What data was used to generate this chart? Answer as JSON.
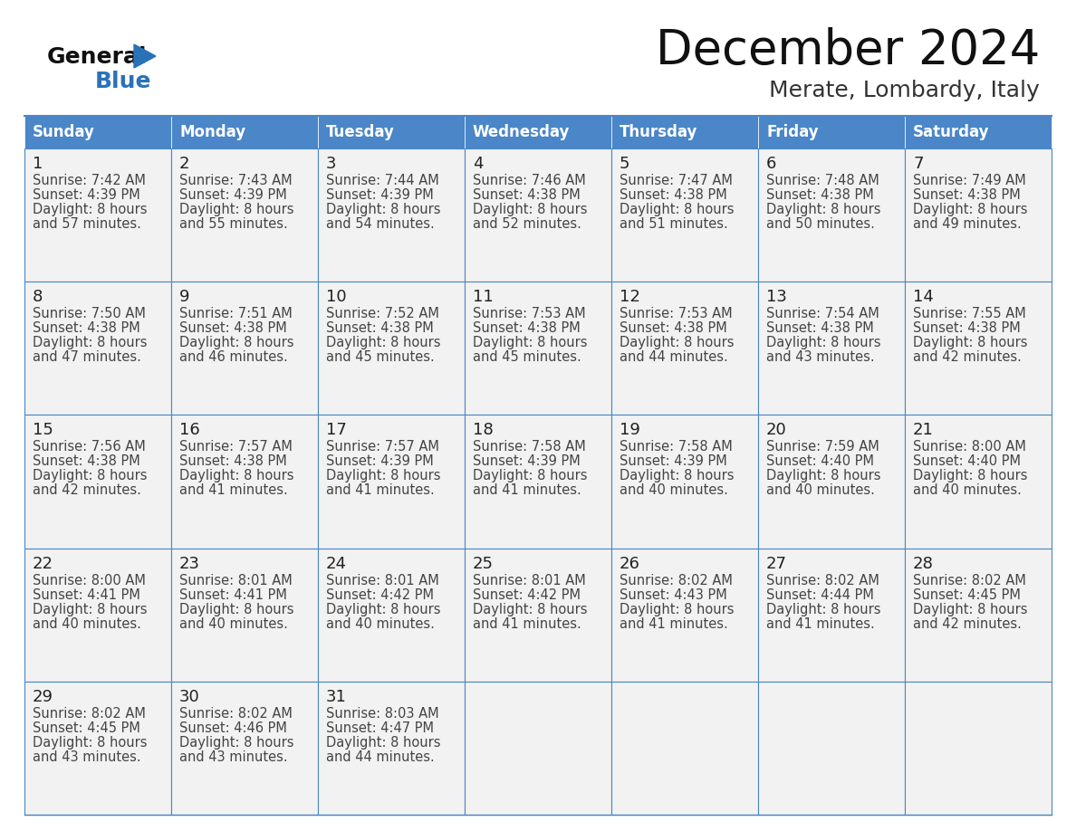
{
  "title": "December 2024",
  "subtitle": "Merate, Lombardy, Italy",
  "days_of_week": [
    "Sunday",
    "Monday",
    "Tuesday",
    "Wednesday",
    "Thursday",
    "Friday",
    "Saturday"
  ],
  "header_bg": "#4a86c8",
  "header_text": "#ffffff",
  "cell_bg_light": "#f2f2f2",
  "cell_bg_white": "#ffffff",
  "cell_border": "#4a86c8",
  "day_num_color": "#222222",
  "cell_text_color": "#444444",
  "title_color": "#111111",
  "subtitle_color": "#333333",
  "logo_general_color": "#111111",
  "logo_blue_color": "#2a72b8",
  "weeks": [
    [
      {
        "day": 1,
        "sunrise": "7:42 AM",
        "sunset": "4:39 PM",
        "daylight_min": "57 minutes."
      },
      {
        "day": 2,
        "sunrise": "7:43 AM",
        "sunset": "4:39 PM",
        "daylight_min": "55 minutes."
      },
      {
        "day": 3,
        "sunrise": "7:44 AM",
        "sunset": "4:39 PM",
        "daylight_min": "54 minutes."
      },
      {
        "day": 4,
        "sunrise": "7:46 AM",
        "sunset": "4:38 PM",
        "daylight_min": "52 minutes."
      },
      {
        "day": 5,
        "sunrise": "7:47 AM",
        "sunset": "4:38 PM",
        "daylight_min": "51 minutes."
      },
      {
        "day": 6,
        "sunrise": "7:48 AM",
        "sunset": "4:38 PM",
        "daylight_min": "50 minutes."
      },
      {
        "day": 7,
        "sunrise": "7:49 AM",
        "sunset": "4:38 PM",
        "daylight_min": "49 minutes."
      }
    ],
    [
      {
        "day": 8,
        "sunrise": "7:50 AM",
        "sunset": "4:38 PM",
        "daylight_min": "47 minutes."
      },
      {
        "day": 9,
        "sunrise": "7:51 AM",
        "sunset": "4:38 PM",
        "daylight_min": "46 minutes."
      },
      {
        "day": 10,
        "sunrise": "7:52 AM",
        "sunset": "4:38 PM",
        "daylight_min": "45 minutes."
      },
      {
        "day": 11,
        "sunrise": "7:53 AM",
        "sunset": "4:38 PM",
        "daylight_min": "45 minutes."
      },
      {
        "day": 12,
        "sunrise": "7:53 AM",
        "sunset": "4:38 PM",
        "daylight_min": "44 minutes."
      },
      {
        "day": 13,
        "sunrise": "7:54 AM",
        "sunset": "4:38 PM",
        "daylight_min": "43 minutes."
      },
      {
        "day": 14,
        "sunrise": "7:55 AM",
        "sunset": "4:38 PM",
        "daylight_min": "42 minutes."
      }
    ],
    [
      {
        "day": 15,
        "sunrise": "7:56 AM",
        "sunset": "4:38 PM",
        "daylight_min": "42 minutes."
      },
      {
        "day": 16,
        "sunrise": "7:57 AM",
        "sunset": "4:38 PM",
        "daylight_min": "41 minutes."
      },
      {
        "day": 17,
        "sunrise": "7:57 AM",
        "sunset": "4:39 PM",
        "daylight_min": "41 minutes."
      },
      {
        "day": 18,
        "sunrise": "7:58 AM",
        "sunset": "4:39 PM",
        "daylight_min": "41 minutes."
      },
      {
        "day": 19,
        "sunrise": "7:58 AM",
        "sunset": "4:39 PM",
        "daylight_min": "40 minutes."
      },
      {
        "day": 20,
        "sunrise": "7:59 AM",
        "sunset": "4:40 PM",
        "daylight_min": "40 minutes."
      },
      {
        "day": 21,
        "sunrise": "8:00 AM",
        "sunset": "4:40 PM",
        "daylight_min": "40 minutes."
      }
    ],
    [
      {
        "day": 22,
        "sunrise": "8:00 AM",
        "sunset": "4:41 PM",
        "daylight_min": "40 minutes."
      },
      {
        "day": 23,
        "sunrise": "8:01 AM",
        "sunset": "4:41 PM",
        "daylight_min": "40 minutes."
      },
      {
        "day": 24,
        "sunrise": "8:01 AM",
        "sunset": "4:42 PM",
        "daylight_min": "40 minutes."
      },
      {
        "day": 25,
        "sunrise": "8:01 AM",
        "sunset": "4:42 PM",
        "daylight_min": "41 minutes."
      },
      {
        "day": 26,
        "sunrise": "8:02 AM",
        "sunset": "4:43 PM",
        "daylight_min": "41 minutes."
      },
      {
        "day": 27,
        "sunrise": "8:02 AM",
        "sunset": "4:44 PM",
        "daylight_min": "41 minutes."
      },
      {
        "day": 28,
        "sunrise": "8:02 AM",
        "sunset": "4:45 PM",
        "daylight_min": "42 minutes."
      }
    ],
    [
      {
        "day": 29,
        "sunrise": "8:02 AM",
        "sunset": "4:45 PM",
        "daylight_min": "43 minutes."
      },
      {
        "day": 30,
        "sunrise": "8:02 AM",
        "sunset": "4:46 PM",
        "daylight_min": "43 minutes."
      },
      {
        "day": 31,
        "sunrise": "8:03 AM",
        "sunset": "4:47 PM",
        "daylight_min": "44 minutes."
      },
      null,
      null,
      null,
      null
    ]
  ]
}
